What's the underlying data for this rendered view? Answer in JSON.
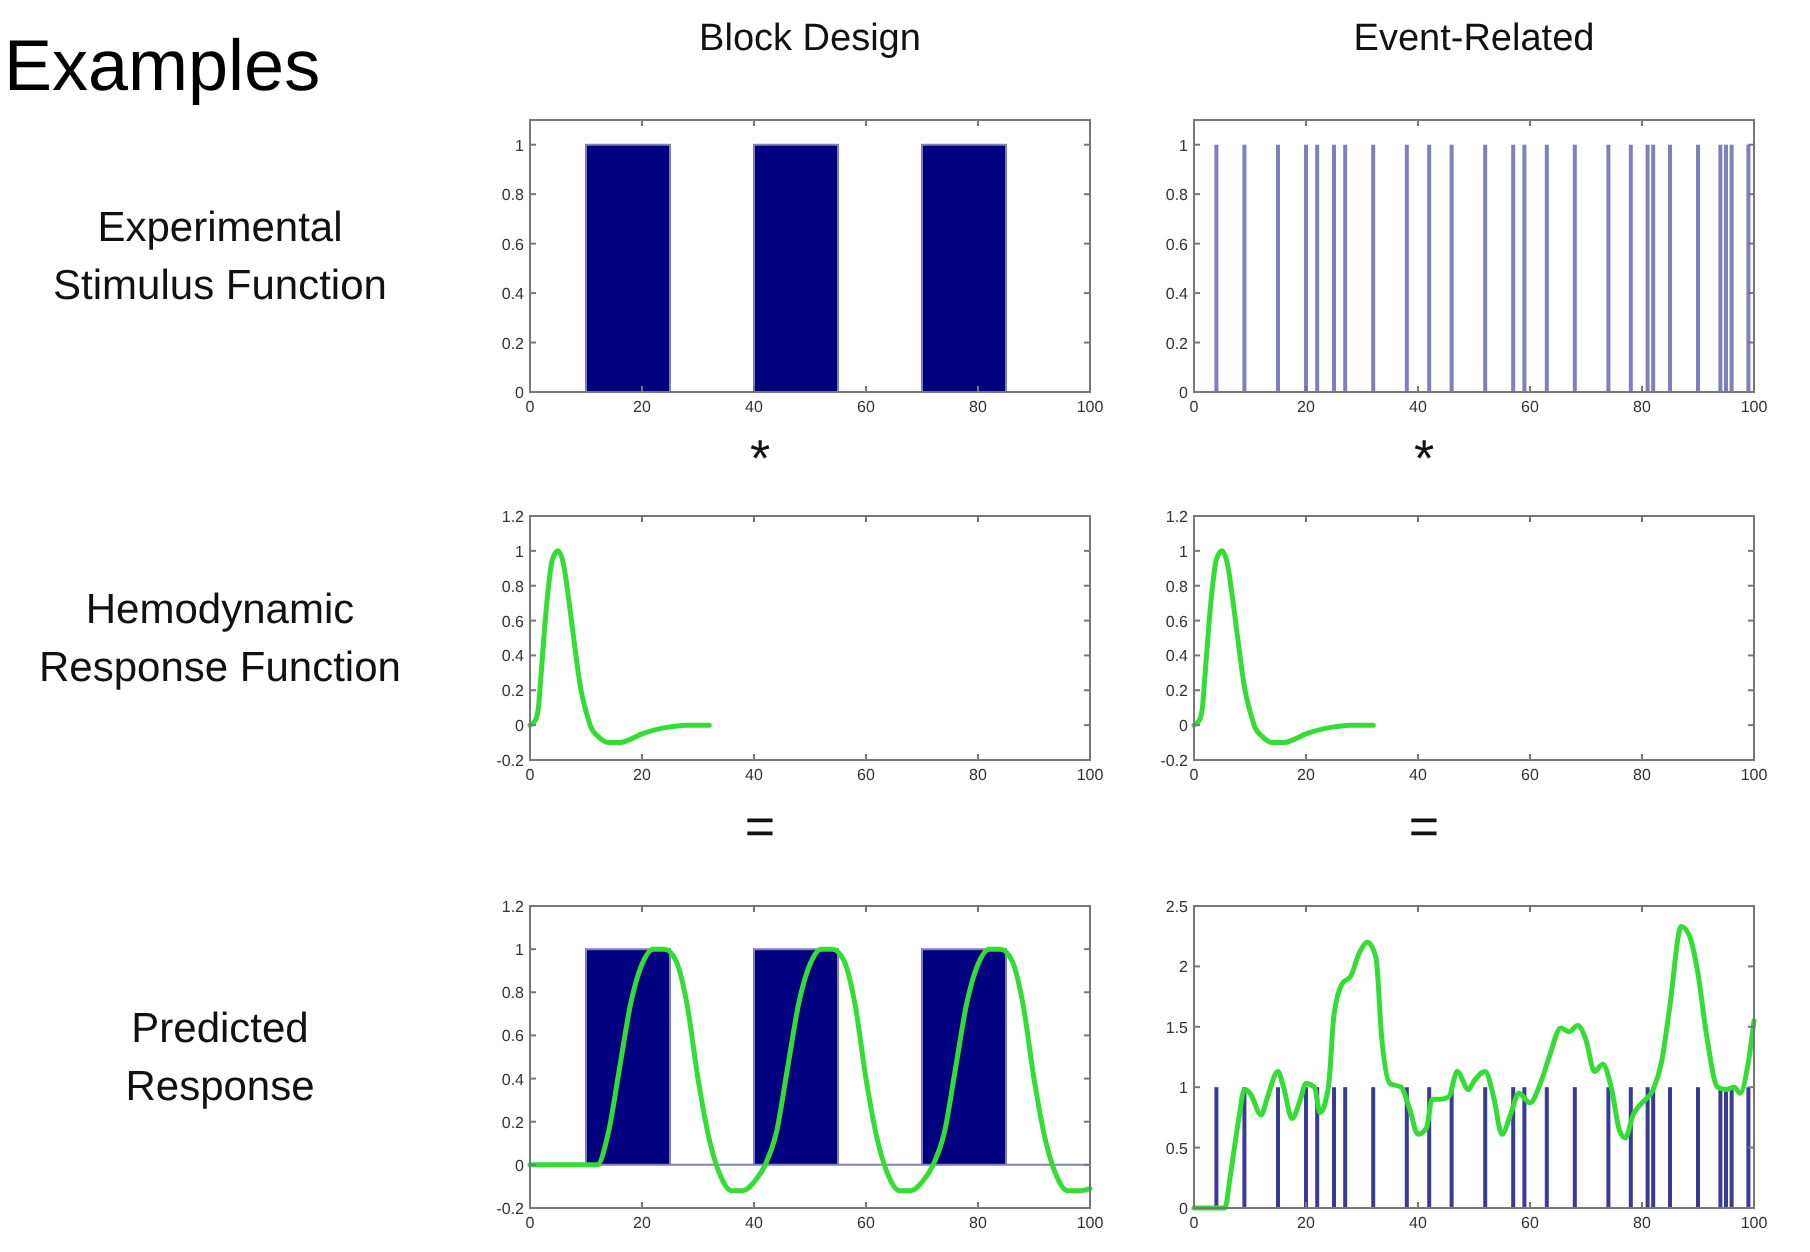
{
  "chart_data": [
    {
      "type": "other",
      "title": "Examples"
    },
    {
      "type": "area",
      "title": "Block Design",
      "ylabel": "Experimental Stimulus Function",
      "annotations": [
        "*"
      ],
      "x": [
        0,
        10,
        10,
        25,
        25,
        40,
        40,
        55,
        55,
        70,
        70,
        85,
        85,
        100
      ],
      "values": [
        0,
        0,
        1,
        1,
        0,
        0,
        1,
        1,
        0,
        0,
        1,
        1,
        0,
        0
      ],
      "color": "#000080",
      "xlim": [
        0,
        100
      ],
      "ylim": [
        0,
        1.1
      ],
      "xticks": [
        0,
        20,
        40,
        60,
        80,
        100
      ],
      "yticks": [
        0,
        0.2,
        0.4,
        0.6,
        0.8,
        1
      ]
    },
    {
      "type": "bar",
      "title": "Event-Related",
      "annotations": [
        "*"
      ],
      "x": [
        4,
        9,
        15,
        20,
        22,
        25,
        27,
        32,
        38,
        42,
        46,
        52,
        57,
        59,
        63,
        68,
        74,
        78,
        81,
        82,
        85,
        90,
        94,
        95,
        96,
        99
      ],
      "values": [
        1,
        1,
        1,
        1,
        1,
        1,
        1,
        1,
        1,
        1,
        1,
        1,
        1,
        1,
        1,
        1,
        1,
        1,
        1,
        1,
        1,
        1,
        1,
        1,
        1,
        1
      ],
      "color": "#7f7fc0",
      "xlim": [
        0,
        100
      ],
      "ylim": [
        0,
        1.1
      ],
      "xticks": [
        0,
        20,
        40,
        60,
        80,
        100
      ],
      "yticks": [
        0,
        0.2,
        0.4,
        0.6,
        0.8,
        1
      ]
    },
    {
      "type": "line",
      "ylabel": "Hemodynamic Response Function",
      "annotations": [
        "="
      ],
      "x": [
        0,
        1,
        1.5,
        2,
        3,
        4,
        5,
        6,
        7,
        8,
        9,
        10,
        11,
        12,
        14,
        16,
        18,
        20,
        22,
        25,
        28,
        32
      ],
      "values": [
        0,
        0.03,
        0.1,
        0.3,
        0.7,
        0.95,
        1,
        0.92,
        0.7,
        0.45,
        0.22,
        0.08,
        -0.02,
        -0.06,
        -0.1,
        -0.1,
        -0.08,
        -0.05,
        -0.03,
        -0.01,
        0,
        0
      ],
      "color": "#33dd33",
      "xlim": [
        0,
        100
      ],
      "ylim": [
        -0.2,
        1.2
      ],
      "xticks": [
        0,
        20,
        40,
        60,
        80,
        100
      ],
      "yticks": [
        -0.2,
        0,
        0.2,
        0.4,
        0.6,
        0.8,
        1,
        1.2
      ]
    },
    {
      "type": "line",
      "annotations": [
        "="
      ],
      "x": [
        0,
        1,
        1.5,
        2,
        3,
        4,
        5,
        6,
        7,
        8,
        9,
        10,
        11,
        12,
        14,
        16,
        18,
        20,
        22,
        25,
        28,
        32
      ],
      "values": [
        0,
        0.03,
        0.1,
        0.3,
        0.7,
        0.95,
        1,
        0.92,
        0.7,
        0.45,
        0.22,
        0.08,
        -0.02,
        -0.06,
        -0.1,
        -0.1,
        -0.08,
        -0.05,
        -0.03,
        -0.01,
        0,
        0
      ],
      "color": "#33dd33",
      "xlim": [
        0,
        100
      ],
      "ylim": [
        -0.2,
        1.2
      ],
      "xticks": [
        0,
        20,
        40,
        60,
        80,
        100
      ],
      "yticks": [
        -0.2,
        0,
        0.2,
        0.4,
        0.6,
        0.8,
        1,
        1.2
      ]
    },
    {
      "type": "line",
      "ylabel": "Predicted Response",
      "xlim": [
        0,
        100
      ],
      "ylim": [
        -0.2,
        1.2
      ],
      "xticks": [
        0,
        20,
        40,
        60,
        80,
        100
      ],
      "yticks": [
        -0.2,
        0,
        0.2,
        0.4,
        0.6,
        0.8,
        1,
        1.2
      ],
      "series": [
        {
          "type": "area",
          "color": "#000080",
          "x": [
            0,
            10,
            10,
            25,
            25,
            40,
            40,
            55,
            55,
            70,
            70,
            85,
            85,
            100
          ],
          "values": [
            0,
            0,
            1,
            1,
            0,
            0,
            1,
            1,
            0,
            0,
            1,
            1,
            0,
            0
          ]
        },
        {
          "type": "line",
          "color": "#33dd33",
          "x": [
            0,
            12,
            14,
            16,
            18,
            20,
            22,
            24,
            26,
            28,
            30,
            32,
            34,
            36,
            38,
            40,
            42,
            44,
            46,
            48,
            50,
            52,
            54,
            56,
            58,
            60,
            62,
            64,
            66,
            68,
            70,
            72,
            74,
            76,
            78,
            80,
            82,
            84,
            86,
            88,
            90,
            92,
            94,
            96,
            98,
            100
          ],
          "values": [
            0,
            0,
            0.15,
            0.45,
            0.75,
            0.93,
            1,
            1,
            0.95,
            0.75,
            0.4,
            0.12,
            -0.05,
            -0.12,
            -0.12,
            -0.08,
            0,
            0.15,
            0.45,
            0.75,
            0.93,
            1,
            1,
            0.95,
            0.75,
            0.4,
            0.12,
            -0.05,
            -0.12,
            -0.12,
            -0.08,
            0,
            0.15,
            0.45,
            0.75,
            0.93,
            1,
            1,
            0.95,
            0.75,
            0.4,
            0.12,
            -0.05,
            -0.12,
            -0.12,
            -0.11
          ]
        }
      ]
    },
    {
      "type": "line",
      "xlim": [
        0,
        100
      ],
      "ylim": [
        0,
        2.5
      ],
      "xticks": [
        0,
        20,
        40,
        60,
        80,
        100
      ],
      "yticks": [
        0,
        0.5,
        1,
        1.5,
        2,
        2.5
      ],
      "series": [
        {
          "type": "bar",
          "color": "#3a3a99",
          "x": [
            4,
            9,
            15,
            20,
            22,
            25,
            27,
            32,
            38,
            42,
            46,
            52,
            57,
            59,
            63,
            68,
            74,
            78,
            81,
            82,
            85,
            90,
            94,
            95,
            96,
            99
          ],
          "values": [
            1,
            1,
            1,
            1,
            1,
            1,
            1,
            1,
            1,
            1,
            1,
            1,
            1,
            1,
            1,
            1,
            1,
            1,
            1,
            1,
            1,
            1,
            1,
            1,
            1,
            1
          ]
        },
        {
          "type": "line",
          "color": "#33dd33",
          "x": [
            0,
            4,
            5.5,
            6.5,
            8,
            9,
            10,
            12,
            13,
            15,
            16,
            17.5,
            19,
            20,
            21.5,
            22.5,
            24,
            25,
            26.5,
            28,
            29.5,
            31,
            32.5,
            33.5,
            35,
            37,
            38.5,
            40,
            41.5,
            42.5,
            44,
            45.5,
            47,
            49,
            50,
            52,
            53.5,
            55,
            56.5,
            58,
            60,
            62,
            63.5,
            65.5,
            67,
            68.5,
            70,
            71.5,
            73,
            74.5,
            76,
            77,
            78.5,
            80,
            82,
            83.5,
            85,
            87,
            88.5,
            90,
            91.5,
            93.5,
            95,
            96.5,
            97.5,
            99,
            100
          ],
          "values": [
            0,
            0,
            0,
            0.27,
            0.74,
            0.98,
            0.95,
            0.77,
            0.9,
            1.13,
            1,
            0.74,
            0.9,
            1.03,
            1,
            0.79,
            1,
            1.6,
            1.86,
            1.92,
            2.11,
            2.2,
            2.07,
            1.42,
            1.03,
            1,
            0.82,
            0.61,
            0.66,
            0.9,
            0.9,
            0.92,
            1.13,
            0.98,
            1.05,
            1.13,
            0.92,
            0.61,
            0.77,
            0.95,
            0.87,
            1.05,
            1.26,
            1.49,
            1.46,
            1.51,
            1.39,
            1.13,
            1.19,
            1,
            0.64,
            0.58,
            0.78,
            0.87,
            0.98,
            1.21,
            1.68,
            2.33,
            2.25,
            1.94,
            1.44,
            1,
            0.98,
            1,
            0.95,
            1.21,
            1.55
          ]
        }
      ]
    }
  ]
}
